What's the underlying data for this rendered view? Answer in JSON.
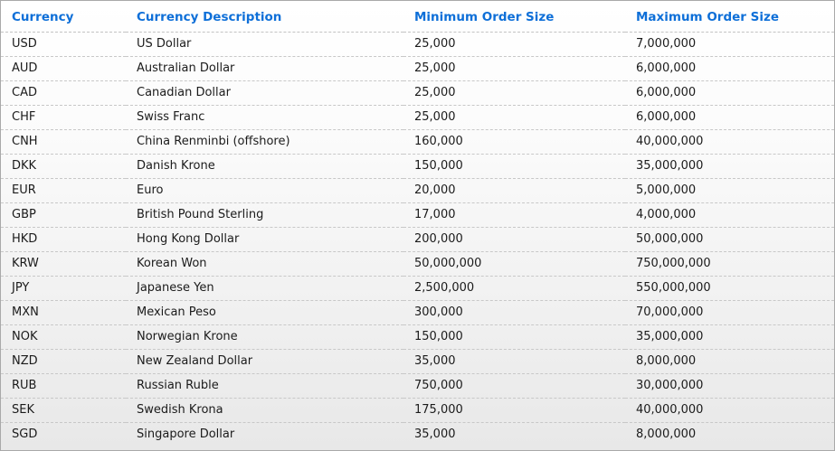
{
  "colors": {
    "accent": "#0e6fd8",
    "row_separator": "#c8c8c8",
    "outer_border": "#a9a9a9",
    "gradient_top": "#ffffff",
    "gradient_bottom": "#e8e8e8"
  },
  "table": {
    "columns": [
      "Currency",
      "Currency Description",
      "Minimum Order Size",
      "Maximum Order Size"
    ],
    "rows": [
      {
        "code": "USD",
        "description": "US Dollar",
        "min": "25,000",
        "max": "7,000,000"
      },
      {
        "code": "AUD",
        "description": "Australian Dollar",
        "min": "25,000",
        "max": "6,000,000"
      },
      {
        "code": "CAD",
        "description": "Canadian Dollar",
        "min": "25,000",
        "max": "6,000,000"
      },
      {
        "code": "CHF",
        "description": "Swiss Franc",
        "min": "25,000",
        "max": "6,000,000"
      },
      {
        "code": "CNH",
        "description": "China Renminbi (offshore)",
        "min": "160,000",
        "max": "40,000,000"
      },
      {
        "code": "DKK",
        "description": "Danish Krone",
        "min": "150,000",
        "max": "35,000,000"
      },
      {
        "code": "EUR",
        "description": "Euro",
        "min": "20,000",
        "max": "5,000,000"
      },
      {
        "code": "GBP",
        "description": "British Pound Sterling",
        "min": "17,000",
        "max": "4,000,000"
      },
      {
        "code": "HKD",
        "description": "Hong Kong Dollar",
        "min": "200,000",
        "max": "50,000,000"
      },
      {
        "code": "KRW",
        "description": "Korean Won",
        "min": "50,000,000",
        "max": "750,000,000"
      },
      {
        "code": "JPY",
        "description": "Japanese Yen",
        "min": "2,500,000",
        "max": "550,000,000"
      },
      {
        "code": "MXN",
        "description": "Mexican Peso",
        "min": "300,000",
        "max": "70,000,000"
      },
      {
        "code": "NOK",
        "description": "Norwegian Krone",
        "min": "150,000",
        "max": "35,000,000"
      },
      {
        "code": "NZD",
        "description": "New Zealand Dollar",
        "min": "35,000",
        "max": "8,000,000"
      },
      {
        "code": "RUB",
        "description": "Russian Ruble",
        "min": "750,000",
        "max": "30,000,000"
      },
      {
        "code": "SEK",
        "description": "Swedish Krona",
        "min": "175,000",
        "max": "40,000,000"
      },
      {
        "code": "SGD",
        "description": "Singapore Dollar",
        "min": "35,000",
        "max": "8,000,000"
      }
    ]
  }
}
